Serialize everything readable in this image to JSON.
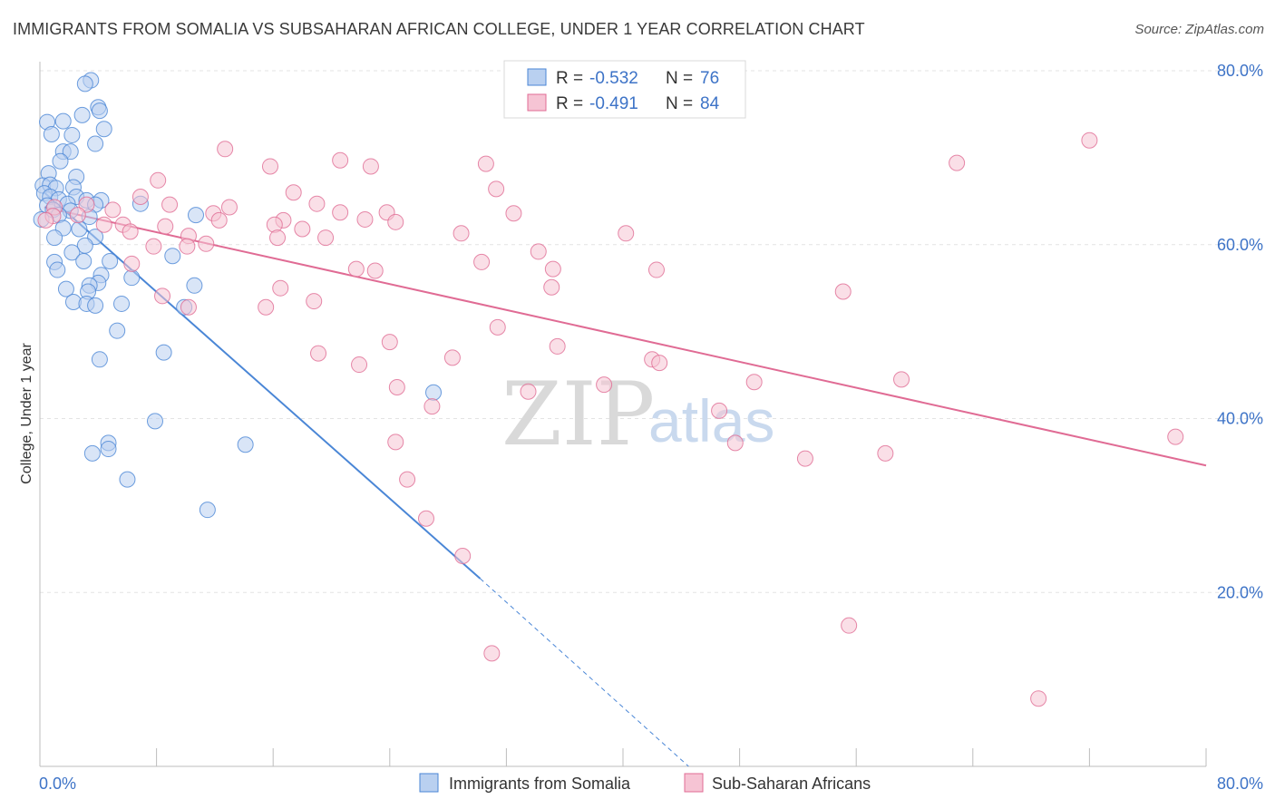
{
  "header": {
    "title": "IMMIGRANTS FROM SOMALIA VS SUBSAHARAN AFRICAN COLLEGE, UNDER 1 YEAR CORRELATION CHART",
    "source": "Source: ZipAtlas.com"
  },
  "watermark": {
    "zip": "ZIP",
    "atlas": "atlas"
  },
  "colors": {
    "blue": "#4a86d6",
    "blue_fill": "#b9d0f0",
    "pink": "#e06b94",
    "pink_fill": "#f6c4d4",
    "tick_text": "#3d73c7"
  },
  "legend": {
    "entries": [
      {
        "r_label": "R =",
        "r_value": "-0.532",
        "n_label": "N =",
        "n_value": "76"
      },
      {
        "r_label": "R =",
        "r_value": "-0.491",
        "n_label": "N =",
        "n_value": "84"
      }
    ]
  },
  "chart_data": {
    "type": "scatter",
    "title": "IMMIGRANTS FROM SOMALIA VS SUBSAHARAN AFRICAN COLLEGE, UNDER 1 YEAR CORRELATION CHART",
    "xlabel": "",
    "ylabel": "College, Under 1 year",
    "xlim": [
      0,
      80
    ],
    "ylim": [
      0,
      80
    ],
    "x_tick_labels": [
      "0.0%",
      "80.0%"
    ],
    "y_ticks": [
      20,
      40,
      60,
      80
    ],
    "y_tick_labels": [
      "20.0%",
      "40.0%",
      "60.0%",
      "80.0%"
    ],
    "grid": true,
    "legend_position": "top-center",
    "series": [
      {
        "name": "Immigrants from Somalia",
        "r": -0.532,
        "n": 76,
        "trend": {
          "x0": 0.3,
          "y0": 66.0,
          "x1": 30.2,
          "y1": 21.6,
          "dash_to_x": 44.5,
          "dash_to_y": 0
        },
        "points": [
          [
            3.5,
            78.9
          ],
          [
            3.1,
            78.5
          ],
          [
            4.0,
            75.8
          ],
          [
            2.9,
            74.9
          ],
          [
            4.1,
            75.4
          ],
          [
            1.6,
            74.2
          ],
          [
            0.5,
            74.1
          ],
          [
            4.4,
            73.3
          ],
          [
            0.8,
            72.7
          ],
          [
            2.2,
            72.6
          ],
          [
            3.8,
            71.6
          ],
          [
            1.6,
            70.7
          ],
          [
            2.1,
            70.7
          ],
          [
            1.4,
            69.6
          ],
          [
            0.6,
            68.2
          ],
          [
            2.5,
            67.8
          ],
          [
            0.2,
            66.8
          ],
          [
            0.7,
            66.9
          ],
          [
            2.3,
            66.6
          ],
          [
            1.1,
            66.5
          ],
          [
            0.3,
            65.9
          ],
          [
            0.7,
            65.5
          ],
          [
            1.3,
            65.2
          ],
          [
            2.5,
            65.5
          ],
          [
            3.2,
            65.1
          ],
          [
            4.2,
            65.1
          ],
          [
            6.9,
            64.7
          ],
          [
            0.5,
            64.5
          ],
          [
            1.9,
            64.7
          ],
          [
            3.8,
            64.6
          ],
          [
            0.9,
            64.0
          ],
          [
            2.1,
            63.9
          ],
          [
            1.3,
            63.4
          ],
          [
            10.7,
            63.4
          ],
          [
            3.4,
            63.2
          ],
          [
            0.1,
            62.9
          ],
          [
            1.6,
            61.9
          ],
          [
            2.7,
            61.8
          ],
          [
            3.8,
            60.9
          ],
          [
            1.0,
            60.8
          ],
          [
            3.1,
            59.9
          ],
          [
            2.2,
            59.1
          ],
          [
            9.1,
            58.7
          ],
          [
            3.0,
            58.1
          ],
          [
            4.8,
            58.1
          ],
          [
            1.0,
            58.0
          ],
          [
            1.2,
            57.1
          ],
          [
            4.2,
            56.5
          ],
          [
            6.3,
            56.2
          ],
          [
            4.0,
            55.6
          ],
          [
            3.4,
            55.3
          ],
          [
            10.6,
            55.3
          ],
          [
            1.8,
            54.9
          ],
          [
            3.3,
            54.6
          ],
          [
            2.3,
            53.4
          ],
          [
            3.2,
            53.2
          ],
          [
            3.8,
            53.0
          ],
          [
            5.6,
            53.2
          ],
          [
            9.9,
            52.8
          ],
          [
            5.3,
            50.1
          ],
          [
            8.5,
            47.6
          ],
          [
            4.1,
            46.8
          ],
          [
            27.0,
            43.0
          ],
          [
            7.9,
            39.7
          ],
          [
            4.7,
            37.2
          ],
          [
            14.1,
            37.0
          ],
          [
            4.7,
            36.5
          ],
          [
            3.6,
            36.0
          ],
          [
            6.0,
            33.0
          ],
          [
            11.5,
            29.5
          ]
        ]
      },
      {
        "name": "Sub-Saharan Africans",
        "r": -0.491,
        "n": 84,
        "trend": {
          "x0": 0.3,
          "y0": 64.3,
          "x1": 80.0,
          "y1": 34.6
        },
        "points": [
          [
            72.0,
            72.0
          ],
          [
            12.7,
            71.0
          ],
          [
            20.6,
            69.7
          ],
          [
            15.8,
            69.0
          ],
          [
            22.7,
            69.0
          ],
          [
            30.6,
            69.3
          ],
          [
            62.9,
            69.4
          ],
          [
            8.1,
            67.4
          ],
          [
            31.3,
            66.4
          ],
          [
            6.9,
            65.5
          ],
          [
            17.4,
            66.0
          ],
          [
            19.0,
            64.7
          ],
          [
            13.0,
            64.3
          ],
          [
            20.6,
            63.7
          ],
          [
            1.0,
            64.3
          ],
          [
            3.2,
            64.6
          ],
          [
            5.0,
            64.0
          ],
          [
            8.9,
            64.6
          ],
          [
            11.9,
            63.6
          ],
          [
            0.9,
            63.3
          ],
          [
            23.8,
            63.7
          ],
          [
            2.6,
            63.4
          ],
          [
            0.4,
            62.8
          ],
          [
            5.7,
            62.3
          ],
          [
            12.3,
            62.8
          ],
          [
            16.7,
            62.8
          ],
          [
            16.1,
            62.3
          ],
          [
            4.4,
            62.3
          ],
          [
            22.3,
            62.9
          ],
          [
            8.6,
            62.1
          ],
          [
            32.5,
            63.6
          ],
          [
            24.4,
            62.6
          ],
          [
            6.2,
            61.5
          ],
          [
            18.0,
            61.8
          ],
          [
            10.2,
            61.0
          ],
          [
            19.6,
            60.8
          ],
          [
            16.3,
            60.8
          ],
          [
            28.9,
            61.3
          ],
          [
            40.2,
            61.3
          ],
          [
            11.4,
            60.1
          ],
          [
            7.8,
            59.8
          ],
          [
            10.1,
            59.8
          ],
          [
            34.2,
            59.2
          ],
          [
            30.3,
            58.0
          ],
          [
            6.3,
            57.8
          ],
          [
            35.2,
            57.2
          ],
          [
            21.7,
            57.2
          ],
          [
            23.0,
            57.0
          ],
          [
            42.3,
            57.1
          ],
          [
            16.5,
            55.0
          ],
          [
            35.1,
            55.1
          ],
          [
            55.1,
            54.6
          ],
          [
            8.4,
            54.1
          ],
          [
            18.8,
            53.5
          ],
          [
            15.5,
            52.8
          ],
          [
            10.2,
            52.8
          ],
          [
            31.4,
            50.5
          ],
          [
            24.0,
            48.8
          ],
          [
            35.5,
            48.3
          ],
          [
            19.1,
            47.5
          ],
          [
            28.3,
            47.0
          ],
          [
            42.0,
            46.8
          ],
          [
            42.5,
            46.4
          ],
          [
            21.9,
            46.2
          ],
          [
            49.0,
            44.2
          ],
          [
            38.7,
            43.9
          ],
          [
            59.1,
            44.5
          ],
          [
            24.5,
            43.6
          ],
          [
            33.5,
            43.1
          ],
          [
            46.6,
            40.9
          ],
          [
            26.9,
            41.4
          ],
          [
            77.9,
            37.9
          ],
          [
            47.7,
            37.2
          ],
          [
            24.4,
            37.3
          ],
          [
            58.0,
            36.0
          ],
          [
            52.5,
            35.4
          ],
          [
            25.2,
            33.0
          ],
          [
            26.5,
            28.5
          ],
          [
            29.0,
            24.2
          ],
          [
            55.5,
            16.2
          ],
          [
            31.0,
            13.0
          ],
          [
            68.5,
            7.8
          ]
        ]
      }
    ]
  }
}
